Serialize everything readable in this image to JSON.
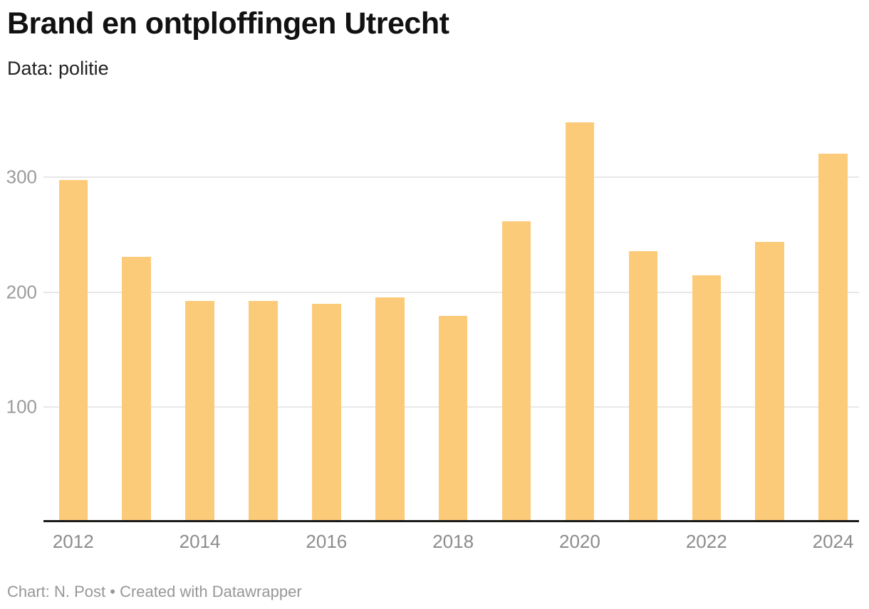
{
  "header": {
    "title": "Brand en ontploffingen Utrecht",
    "subtitle": "Data: politie"
  },
  "footer": {
    "text": "Chart: N. Post • Created with Datawrapper"
  },
  "chart_data": {
    "type": "bar",
    "title": "Brand en ontploffingen Utrecht",
    "subtitle": "Data: politie",
    "categories": [
      2012,
      2013,
      2014,
      2015,
      2016,
      2017,
      2018,
      2019,
      2020,
      2021,
      2022,
      2023,
      2024
    ],
    "values": [
      297,
      230,
      192,
      192,
      189,
      195,
      179,
      261,
      347,
      235,
      214,
      243,
      320
    ],
    "xlabel": "",
    "ylabel": "",
    "ylim": [
      0,
      360
    ],
    "yticks": [
      100,
      200,
      300
    ],
    "xtick_labels": [
      "2012",
      "2014",
      "2016",
      "2018",
      "2020",
      "2022",
      "2024"
    ],
    "grid": "horizontal-only",
    "legend": "none",
    "bar_color": "#FCCB7A",
    "gridline_color": "#e8e8e8",
    "axis_line_color": "#1a1a1a",
    "tick_label_color": "#8c8c8c"
  }
}
